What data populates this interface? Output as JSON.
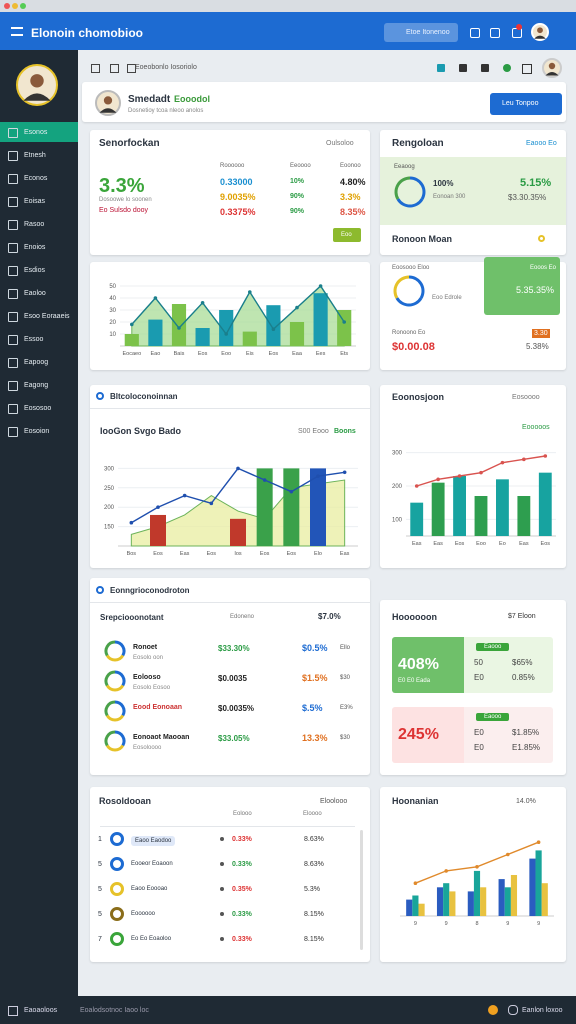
{
  "topbar": {
    "title": "Elonoin chomobioo",
    "search": "Etoe Itonenoo"
  },
  "toolbar": {
    "breadcrumb": "Eoeobonlo Iosoriolo"
  },
  "sidebar": {
    "items": [
      "Esonos",
      "Etnesh",
      "Econos",
      "Eoisas",
      "Rasoo",
      "Enoios",
      "Esdios",
      "Eaoloo",
      "Esoo Eoraaeis",
      "Essoo",
      "Eapoog",
      "Eagong",
      "Eososoo",
      "Eosoion"
    ]
  },
  "profile": {
    "name": "Smedadt",
    "tag": "Eooodol",
    "subtitle": "Dosnetioy tcoa nleoo anolos",
    "button": "Leu Tonpoo"
  },
  "summary": {
    "title": "Senorfockan",
    "note": "Oulsoloo",
    "big": "3.3%",
    "lines": [
      "Dosoowe lo soonen",
      "Eo Sulsdo dooy"
    ],
    "headers": [
      "Roooooo",
      "Eeoooo",
      "Eoonoo"
    ],
    "rows": [
      [
        "0.33000",
        "10%",
        "4.80%"
      ],
      [
        "9.0035%",
        "90%",
        "3.3%"
      ],
      [
        "0.3375%",
        "90%",
        "8.35%"
      ]
    ],
    "button": "Eoo"
  },
  "rank": {
    "title": "Rengoloan",
    "link": "Eaooo Eo",
    "label": "Eeaoog",
    "pct": "100%",
    "sub": "Eonoan 300",
    "value": "5.15%",
    "value2": "$3.30.35%"
  },
  "recent": {
    "title": "Ronoon Moan",
    "label": "Eoosooo Eloo",
    "sub": "Eoo Edrole",
    "box": "Eooos Eo",
    "box_value": "5.35.35%",
    "foot_label": "Ronoono Eo",
    "foot_tag": "3.30",
    "red": "$0.00.08",
    "pct": "5.38%"
  },
  "list": {
    "title": "Eonngrioconodroton",
    "head": "Srepciooonotant",
    "head_mid": "Edoneno",
    "head_val": "$7.0%",
    "rows": [
      {
        "name": "Ronoet",
        "sub": "Eosolo oon",
        "value": "$33.30%",
        "pct": "$0.5%",
        "tag": "Ello"
      },
      {
        "name": "Eolooso",
        "sub": "Eosolo Eosoo",
        "value": "$0.0035",
        "pct": "$1.5%",
        "tag": "$30"
      },
      {
        "name": "Eood Eonoaan",
        "sub": "",
        "value": "$0.0035%",
        "pct": "$.5%",
        "tag": "E3%"
      },
      {
        "name": "Eonoaot Maooan",
        "sub": "Eosoloooo",
        "value": "$33.05%",
        "pct": "13.3%",
        "tag": "$30"
      }
    ]
  },
  "cards": {
    "title": "Hoooooon",
    "link": "$7 Eloon",
    "green": {
      "big": "408%",
      "sub": "E0 E0 Eada",
      "badge": "Eaooo",
      "lines": [
        "50",
        "$65%",
        "E0",
        "0.85%"
      ]
    },
    "red": {
      "big": "245%",
      "sub": "",
      "badge": "Eaooo",
      "lines": [
        "E0",
        "$1.85%",
        "E0",
        "E1.85%"
      ]
    }
  },
  "table": {
    "title": "Rosoldooan",
    "link": "Eloolooo",
    "headers": [
      "Eolooo",
      "Eloooo"
    ],
    "rows": [
      [
        "1",
        "Eaoo Eaodoo",
        "0.33%",
        "8.63%"
      ],
      [
        "5",
        "Eooeor Eoaoon",
        "0.33%",
        "8.63%"
      ],
      [
        "5",
        "Eaoo Eoooao",
        "0.35%",
        "5.3%"
      ],
      [
        "5",
        "Eoooooo",
        "0.33%",
        "8.15%"
      ],
      [
        "7",
        "Eo Eo Eoaoloo",
        "0.33%",
        "8.15%"
      ]
    ]
  },
  "footer": {
    "left": "Eaoaoloos",
    "mid": "Eoalodsotnoc Iaoo loc",
    "right": "Eanlon loxoo"
  },
  "chart_data": [
    {
      "type": "bar",
      "categories": [
        "Eocaeo",
        "Eao",
        "Bais",
        "Eos",
        "Eoo",
        "Eis",
        "Eos",
        "Eaa",
        "Ees",
        "Ets"
      ],
      "ylim": [
        0,
        60
      ],
      "yticks": [
        10,
        20,
        30,
        40,
        50
      ],
      "series": [
        {
          "type": "area",
          "color": "#a9dc97",
          "values": [
            18,
            40,
            15,
            36,
            10,
            45,
            14,
            32,
            50,
            20
          ]
        },
        {
          "type": "bar",
          "colors": [
            "#7cc24a",
            "#1a9bb0",
            "#7cc24a",
            "#1a9bb0",
            "#1a9bb0",
            "#7cc24a",
            "#1a9bb0",
            "#7cc24a",
            "#1a9bb0",
            "#7cc24a"
          ],
          "values": [
            10,
            22,
            35,
            15,
            30,
            12,
            34,
            20,
            44,
            30
          ]
        },
        {
          "type": "line",
          "color": "#1a7f8c",
          "values": [
            18,
            40,
            15,
            36,
            10,
            45,
            14,
            32,
            50,
            20
          ]
        }
      ]
    },
    {
      "type": "bar",
      "title": "Bltcoloconoinnan",
      "subtitle": "IooGon Svgo Bado",
      "legend": [
        "S00 Eooo",
        "Boons"
      ],
      "categories": [
        "Bos",
        "Eos",
        "Eas",
        "Eos",
        "Ios",
        "Eos",
        "Eos",
        "Elo",
        "Eas"
      ],
      "ylim": [
        100,
        350
      ],
      "yticks": [
        150,
        200,
        250,
        300
      ],
      "series": [
        {
          "type": "area",
          "color": "#e8eea0",
          "values": [
            130,
            150,
            180,
            230,
            190,
            170,
            250,
            260,
            270
          ]
        },
        {
          "type": "bar",
          "colors": [
            "#4aa14a",
            "#c0392b",
            "#4aa14a",
            "#4aa14a",
            "#c0392b",
            "#3aa14a",
            "#3aa14a",
            "#2255b8",
            "#4aa14a"
          ],
          "values": [
            null,
            180,
            null,
            null,
            170,
            300,
            300,
            300,
            null
          ]
        },
        {
          "type": "line",
          "color": "#1f4fae",
          "values": [
            160,
            200,
            230,
            210,
            300,
            270,
            240,
            280,
            290
          ]
        }
      ]
    },
    {
      "type": "bar",
      "title": "Eoonosjoon",
      "note": "Eosoooo",
      "legend": [
        "Eooooos"
      ],
      "categories": [
        "Eas",
        "Eas",
        "Eos",
        "Eoo",
        "Eo",
        "Eas",
        "Eos"
      ],
      "ylim": [
        50,
        350
      ],
      "yticks": [
        100,
        200,
        300
      ],
      "series": [
        {
          "type": "bar",
          "colors": [
            "#17a3a0",
            "#2e9e4f",
            "#17a3a0",
            "#2e9e4f",
            "#17a3a0",
            "#2e9e4f",
            "#17a3a0"
          ],
          "values": [
            150,
            210,
            230,
            170,
            220,
            170,
            240
          ]
        },
        {
          "type": "line",
          "color": "#d9534f",
          "values": [
            200,
            220,
            230,
            240,
            270,
            280,
            290
          ]
        }
      ]
    },
    {
      "type": "bar",
      "title": "Hoonanian",
      "note": "14.0%",
      "categories": [
        "9",
        "9",
        "8",
        "9",
        "9"
      ],
      "ylim": [
        0,
        100
      ],
      "series": [
        {
          "type": "bar",
          "color": "#2a5cc0",
          "values": [
            20,
            35,
            30,
            45,
            70
          ]
        },
        {
          "type": "bar",
          "color": "#19a59a",
          "values": [
            25,
            40,
            55,
            35,
            80
          ]
        },
        {
          "type": "bar",
          "color": "#e8c240",
          "values": [
            15,
            30,
            35,
            50,
            40
          ]
        },
        {
          "type": "line",
          "color": "#e08a2c",
          "values": [
            40,
            55,
            60,
            75,
            90
          ]
        }
      ]
    }
  ]
}
